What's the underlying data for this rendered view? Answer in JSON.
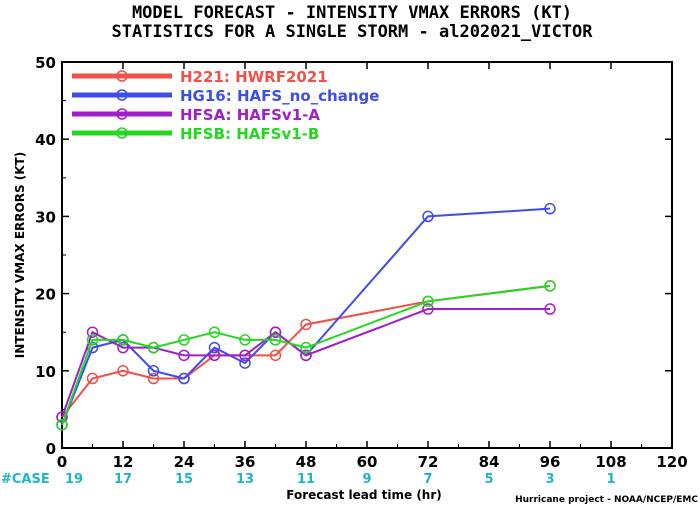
{
  "chart_data": {
    "type": "line",
    "title": "MODEL FORECAST - INTENSITY VMAX ERRORS (KT)",
    "subtitle": "STATISTICS FOR A SINGLE STORM - al202021_VICTOR",
    "xlabel": "Forecast lead time (hr)",
    "ylabel": "INTENSITY VMAX ERRORS (KT)",
    "xlim": [
      0,
      120
    ],
    "ylim": [
      0,
      50
    ],
    "xticks": [
      0,
      12,
      24,
      36,
      48,
      60,
      72,
      84,
      96,
      108,
      120
    ],
    "yticks": [
      0,
      10,
      20,
      30,
      40,
      50
    ],
    "grid": false,
    "legend_position": "top-left",
    "case_label": "#CASE",
    "cases": [
      {
        "x": 0,
        "n": "19"
      },
      {
        "x": 12,
        "n": "17"
      },
      {
        "x": 24,
        "n": "15"
      },
      {
        "x": 36,
        "n": "13"
      },
      {
        "x": 48,
        "n": "11"
      },
      {
        "x": 60,
        "n": "9"
      },
      {
        "x": 72,
        "n": "7"
      },
      {
        "x": 84,
        "n": "5"
      },
      {
        "x": 96,
        "n": "3"
      },
      {
        "x": 108,
        "n": "1"
      }
    ],
    "credit": "Hurricane project - NOAA/NCEP/EMC",
    "series": [
      {
        "name": "H221: HWRF2021",
        "color": "#f0504a",
        "points": [
          [
            0,
            4
          ],
          [
            6,
            9
          ],
          [
            12,
            10
          ],
          [
            18,
            9
          ],
          [
            24,
            9
          ],
          [
            30,
            12
          ],
          [
            36,
            12
          ],
          [
            42,
            12
          ],
          [
            48,
            16
          ],
          [
            72,
            19
          ],
          [
            96,
            21
          ]
        ]
      },
      {
        "name": "HG16: HAFS_no_change",
        "color": "#3c4cef",
        "points": [
          [
            0,
            3
          ],
          [
            6,
            13
          ],
          [
            12,
            14
          ],
          [
            18,
            10
          ],
          [
            24,
            9
          ],
          [
            30,
            13
          ],
          [
            36,
            11
          ],
          [
            42,
            15
          ],
          [
            48,
            12
          ],
          [
            72,
            30
          ],
          [
            96,
            31
          ]
        ]
      },
      {
        "name": "HFSA: HAFSv1-A",
        "color": "#a020c8",
        "points": [
          [
            0,
            4
          ],
          [
            6,
            15
          ],
          [
            12,
            13
          ],
          [
            18,
            13
          ],
          [
            24,
            12
          ],
          [
            30,
            12
          ],
          [
            36,
            12
          ],
          [
            42,
            15
          ],
          [
            48,
            12
          ],
          [
            72,
            18
          ],
          [
            96,
            18
          ]
        ]
      },
      {
        "name": "HFSB: HAFSv1-B",
        "color": "#24d820",
        "points": [
          [
            0,
            3
          ],
          [
            6,
            14
          ],
          [
            12,
            14
          ],
          [
            18,
            13
          ],
          [
            24,
            14
          ],
          [
            30,
            15
          ],
          [
            36,
            14
          ],
          [
            42,
            14
          ],
          [
            48,
            13
          ],
          [
            72,
            19
          ],
          [
            96,
            21
          ]
        ]
      }
    ]
  }
}
